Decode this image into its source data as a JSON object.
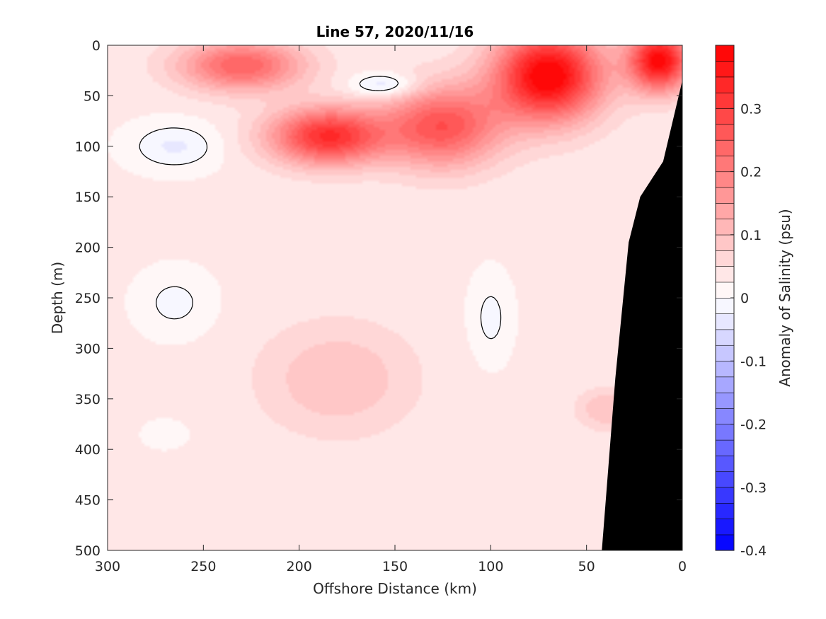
{
  "chart_data": {
    "type": "heatmap",
    "title": "Line 57, 2020/11/16",
    "xlabel": "Offshore Distance (km)",
    "ylabel": "Depth (m)",
    "colorbar_label": "Anomaly of Salinity (psu)",
    "xlim": [
      300,
      0
    ],
    "ylim": [
      0,
      500
    ],
    "x_direction": "reverse",
    "y_direction": "down",
    "x_ticks": [
      "300",
      "250",
      "200",
      "150",
      "100",
      "50",
      "0"
    ],
    "y_ticks": [
      "0",
      "50",
      "100",
      "150",
      "200",
      "250",
      "300",
      "350",
      "400",
      "450",
      "500"
    ],
    "colorbar": {
      "min": -0.4,
      "max": 0.4,
      "ticks": [
        "0.3",
        "0.2",
        "0.1",
        "0",
        "-0.1",
        "-0.2",
        "-0.3",
        "-0.4"
      ],
      "levels": 32,
      "low_color": "#0000ff",
      "mid_color": "#ffffff",
      "high_color": "#ff0000"
    },
    "contour_level": 0,
    "features": [
      {
        "name": "surface-salty-core",
        "x": 70,
        "y": 30,
        "value": 0.38,
        "sx": 28,
        "sy": 45
      },
      {
        "name": "surface-salty-nearshore",
        "x": 12,
        "y": 15,
        "value": 0.36,
        "sx": 16,
        "sy": 30
      },
      {
        "name": "surface-offshore-high",
        "x": 230,
        "y": 20,
        "value": 0.22,
        "sx": 32,
        "sy": 25
      },
      {
        "name": "subsurface-salty-core",
        "x": 185,
        "y": 90,
        "value": 0.3,
        "sx": 30,
        "sy": 28
      },
      {
        "name": "subsurface-salty-east",
        "x": 125,
        "y": 80,
        "value": 0.24,
        "sx": 30,
        "sy": 40
      },
      {
        "name": "upper-fresh-lens",
        "x": 155,
        "y": 40,
        "value": -0.09,
        "sx": 18,
        "sy": 12
      },
      {
        "name": "offshore-fresh-100m",
        "x": 265,
        "y": 100,
        "value": -0.06,
        "sx": 22,
        "sy": 22
      },
      {
        "name": "offshore-fresh-250m",
        "x": 265,
        "y": 255,
        "value": -0.04,
        "sx": 18,
        "sy": 30
      },
      {
        "name": "offshore-fresh-380m",
        "x": 270,
        "y": 385,
        "value": -0.03,
        "sx": 10,
        "sy": 12
      },
      {
        "name": "fresh-column-270m",
        "x": 100,
        "y": 270,
        "value": -0.04,
        "sx": 10,
        "sy": 40
      },
      {
        "name": "mid-depth-high",
        "x": 180,
        "y": 330,
        "value": 0.07,
        "sx": 40,
        "sy": 55
      },
      {
        "name": "nearshore-high-360m",
        "x": 40,
        "y": 360,
        "value": 0.07,
        "sx": 15,
        "sy": 20
      }
    ],
    "bathymetry": [
      [
        0,
        35
      ],
      [
        10,
        115
      ],
      [
        22,
        150
      ],
      [
        28,
        195
      ],
      [
        35,
        330
      ],
      [
        42,
        500
      ]
    ]
  }
}
